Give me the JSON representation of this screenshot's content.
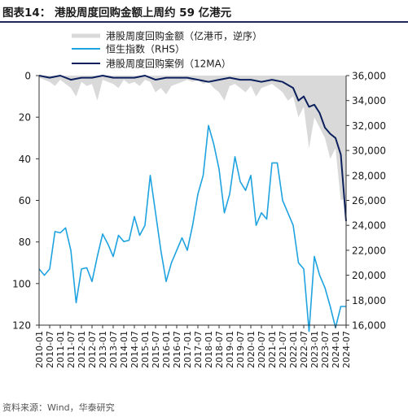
{
  "header": {
    "title": "图表14：  港股周度回购金额上周约 59 亿港元"
  },
  "footer": {
    "source": "资料来源：Wind，华泰研究"
  },
  "chart_data": {
    "type": "line",
    "x_range": [
      "2010-01",
      "2024-07"
    ],
    "x_tick_labels": [
      "2010-01",
      "2010-07",
      "2011-01",
      "2011-07",
      "2012-01",
      "2012-07",
      "2013-01",
      "2013-07",
      "2014-01",
      "2014-07",
      "2015-01",
      "2015-07",
      "2016-01",
      "2016-07",
      "2017-01",
      "2017-07",
      "2018-01",
      "2018-07",
      "2019-01",
      "2019-07",
      "2020-01",
      "2020-07",
      "2021-01",
      "2021-07",
      "2022-01",
      "2022-07",
      "2023-01",
      "2023-07",
      "2024-01",
      "2024-07"
    ],
    "y_left": {
      "range": [
        0,
        120
      ],
      "inverted": true,
      "ticks": [
        0,
        20,
        40,
        60,
        80,
        100,
        120
      ]
    },
    "y_right": {
      "range": [
        16000,
        36000
      ],
      "ticks": [
        16000,
        18000,
        20000,
        22000,
        24000,
        26000,
        28000,
        30000,
        32000,
        34000,
        36000
      ],
      "tick_labels": [
        "16,000",
        "18,000",
        "20,000",
        "22,000",
        "24,000",
        "26,000",
        "28,000",
        "30,000",
        "32,000",
        "34,000",
        "36,000"
      ]
    },
    "legend_position": "top",
    "grid": false,
    "series": [
      {
        "name": "港股周度回购金额（亿港币，逆序）",
        "axis": "left",
        "style": "area",
        "color": "#d9d9d9",
        "x": [
          "2010-01",
          "2010-04",
          "2010-07",
          "2010-10",
          "2011-01",
          "2011-04",
          "2011-07",
          "2011-10",
          "2012-01",
          "2012-04",
          "2012-07",
          "2012-10",
          "2013-01",
          "2013-04",
          "2013-07",
          "2013-10",
          "2014-01",
          "2014-04",
          "2014-07",
          "2014-10",
          "2015-01",
          "2015-04",
          "2015-07",
          "2015-10",
          "2016-01",
          "2016-04",
          "2016-07",
          "2016-10",
          "2017-01",
          "2017-04",
          "2017-07",
          "2017-10",
          "2018-01",
          "2018-04",
          "2018-07",
          "2018-10",
          "2019-01",
          "2019-04",
          "2019-07",
          "2019-10",
          "2020-01",
          "2020-04",
          "2020-07",
          "2020-10",
          "2021-01",
          "2021-04",
          "2021-07",
          "2021-10",
          "2022-01",
          "2022-04",
          "2022-07",
          "2022-10",
          "2023-01",
          "2023-04",
          "2023-07",
          "2023-10",
          "2024-01",
          "2024-04",
          "2024-07"
        ],
        "values": [
          1,
          2,
          3,
          5,
          2,
          4,
          6,
          10,
          3,
          5,
          4,
          12,
          2,
          3,
          4,
          6,
          2,
          4,
          3,
          5,
          2,
          3,
          8,
          6,
          9,
          5,
          4,
          3,
          2,
          3,
          2,
          4,
          3,
          6,
          8,
          12,
          5,
          4,
          6,
          8,
          5,
          10,
          6,
          5,
          4,
          6,
          8,
          12,
          10,
          20,
          15,
          35,
          20,
          25,
          30,
          40,
          35,
          60,
          59
        ]
      },
      {
        "name": "恒生指数（RHS）",
        "axis": "right",
        "style": "line",
        "color": "#1fa3e0",
        "x": [
          "2010-01",
          "2010-04",
          "2010-07",
          "2010-10",
          "2011-01",
          "2011-04",
          "2011-07",
          "2011-10",
          "2012-01",
          "2012-04",
          "2012-07",
          "2012-10",
          "2013-01",
          "2013-04",
          "2013-07",
          "2013-10",
          "2014-01",
          "2014-04",
          "2014-07",
          "2014-10",
          "2015-01",
          "2015-04",
          "2015-07",
          "2015-10",
          "2016-01",
          "2016-04",
          "2016-07",
          "2016-10",
          "2017-01",
          "2017-04",
          "2017-07",
          "2017-10",
          "2018-01",
          "2018-04",
          "2018-07",
          "2018-10",
          "2019-01",
          "2019-04",
          "2019-07",
          "2019-10",
          "2020-01",
          "2020-04",
          "2020-07",
          "2020-10",
          "2021-01",
          "2021-04",
          "2021-07",
          "2021-10",
          "2022-01",
          "2022-04",
          "2022-07",
          "2022-10",
          "2023-01",
          "2023-04",
          "2023-07",
          "2023-10",
          "2024-01",
          "2024-04",
          "2024-07"
        ],
        "values": [
          20500,
          20000,
          20500,
          23500,
          23400,
          23800,
          22000,
          17800,
          20500,
          20600,
          19500,
          21500,
          23300,
          22500,
          21500,
          23200,
          22700,
          22800,
          24700,
          23200,
          24000,
          28000,
          25000,
          22000,
          19500,
          21000,
          22000,
          23000,
          22000,
          24000,
          26500,
          28000,
          32000,
          30500,
          28500,
          25000,
          26500,
          29500,
          27500,
          26800,
          28000,
          24000,
          25000,
          24500,
          29000,
          29000,
          26000,
          25000,
          24000,
          21000,
          20500,
          15500,
          21500,
          20000,
          19000,
          17500,
          15800,
          17500,
          17500
        ]
      },
      {
        "name": "港股周度回购案例（12MA）",
        "axis": "left",
        "style": "line",
        "color": "#0b1f5c",
        "x": [
          "2010-01",
          "2010-07",
          "2011-01",
          "2011-07",
          "2012-01",
          "2012-07",
          "2013-01",
          "2013-07",
          "2014-01",
          "2014-07",
          "2015-01",
          "2015-07",
          "2016-01",
          "2016-07",
          "2017-01",
          "2017-07",
          "2018-01",
          "2018-07",
          "2019-01",
          "2019-07",
          "2020-01",
          "2020-07",
          "2021-01",
          "2021-07",
          "2022-01",
          "2022-04",
          "2022-07",
          "2022-10",
          "2023-01",
          "2023-04",
          "2023-07",
          "2023-10",
          "2024-01",
          "2024-04",
          "2024-07"
        ],
        "values": [
          0,
          1,
          0,
          2,
          1,
          1,
          0,
          1,
          1,
          1,
          0,
          2,
          1,
          1,
          1,
          2,
          3,
          2,
          1,
          2,
          2,
          3,
          2,
          3,
          6,
          12,
          10,
          15,
          14,
          18,
          25,
          28,
          30,
          38,
          70
        ]
      }
    ]
  }
}
